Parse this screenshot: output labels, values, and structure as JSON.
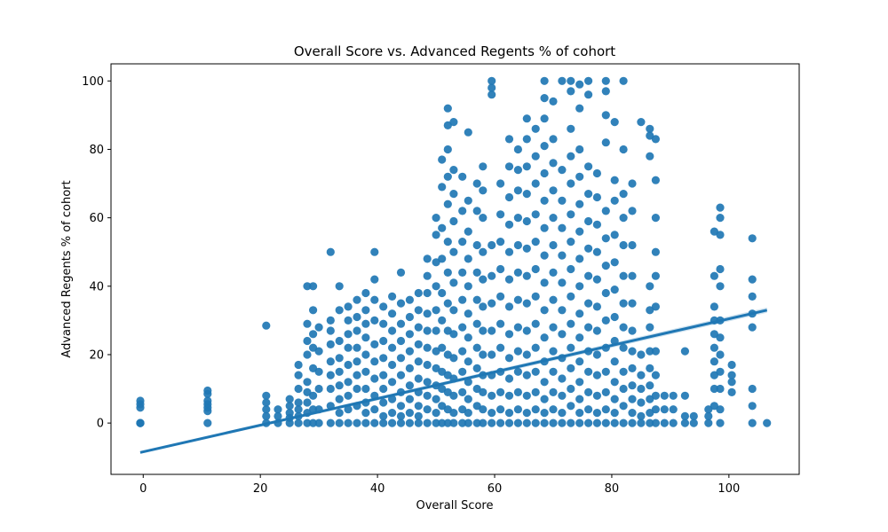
{
  "chart_data": {
    "type": "scatter",
    "title": "Overall Score vs. Advanced Regents % of cohort",
    "xlabel": "Overall Score",
    "ylabel": "Advanced Regents % of cohort",
    "xlim": [
      -5.5,
      112
    ],
    "ylim": [
      -15,
      105
    ],
    "xticks": [
      "0",
      "20",
      "40",
      "60",
      "80",
      "100"
    ],
    "yticks": [
      "0",
      "20",
      "40",
      "60",
      "80",
      "100"
    ],
    "grid": false,
    "colors": {
      "points": "#1f77b4",
      "fit": "#1f77b4"
    },
    "regression": {
      "x": [
        -0.5,
        106.5
      ],
      "y": [
        -8.6,
        33.0
      ]
    },
    "point_groups": [
      {
        "x": -0.5,
        "y": [
          0,
          0,
          0,
          4.5,
          5.5,
          6.5
        ]
      },
      {
        "x": 11,
        "y": [
          0,
          3.5,
          4.5,
          5.5,
          6.5,
          8.5,
          9.5
        ]
      },
      {
        "x": 21,
        "y": [
          0,
          2,
          4,
          6,
          8,
          28.5
        ]
      },
      {
        "x": 23,
        "y": [
          0,
          2,
          4
        ]
      },
      {
        "x": 25,
        "y": [
          0,
          1.5,
          3,
          5,
          7
        ]
      },
      {
        "x": 26.5,
        "y": [
          0,
          2,
          4,
          6,
          10,
          14,
          17
        ]
      },
      {
        "x": 28,
        "y": [
          0,
          3,
          6,
          9,
          12,
          20,
          24,
          29,
          40
        ]
      },
      {
        "x": 29,
        "y": [
          0,
          4,
          8,
          16,
          22,
          26,
          33,
          40
        ]
      },
      {
        "x": 30,
        "y": [
          0,
          4,
          10,
          15,
          21,
          28
        ]
      },
      {
        "x": 32,
        "y": [
          0,
          5,
          10,
          14,
          18,
          23,
          27,
          30,
          50
        ]
      },
      {
        "x": 33.5,
        "y": [
          0,
          3,
          7,
          11,
          15,
          19,
          24,
          33,
          40
        ]
      },
      {
        "x": 35,
        "y": [
          0,
          4,
          8,
          12,
          17,
          22,
          26,
          30,
          34
        ]
      },
      {
        "x": 36.5,
        "y": [
          0,
          5,
          10,
          14,
          18,
          22,
          27,
          31,
          36
        ]
      },
      {
        "x": 38,
        "y": [
          0,
          3,
          6,
          10,
          15,
          20,
          25,
          29,
          33,
          38
        ]
      },
      {
        "x": 39.5,
        "y": [
          0,
          4,
          8,
          13,
          18,
          23,
          30,
          36,
          42,
          50
        ]
      },
      {
        "x": 41,
        "y": [
          0,
          2,
          6,
          10,
          14,
          19,
          24,
          29,
          34
        ]
      },
      {
        "x": 42.5,
        "y": [
          0,
          3,
          7,
          12,
          17,
          22,
          27,
          32,
          37
        ]
      },
      {
        "x": 44,
        "y": [
          0,
          2,
          5,
          9,
          14,
          19,
          24,
          29,
          35,
          44
        ]
      },
      {
        "x": 45.5,
        "y": [
          0,
          3,
          7,
          11,
          16,
          21,
          26,
          31,
          36
        ]
      },
      {
        "x": 47,
        "y": [
          0,
          2,
          5,
          9,
          13,
          18,
          23,
          28,
          33,
          38
        ]
      },
      {
        "x": 48.5,
        "y": [
          0,
          4,
          8,
          12,
          17,
          22,
          27,
          32,
          38,
          43,
          48
        ]
      },
      {
        "x": 50,
        "y": [
          0,
          3,
          7,
          11,
          16,
          21,
          27,
          33,
          40,
          47,
          55,
          60
        ]
      },
      {
        "x": 51,
        "y": [
          0,
          5,
          10,
          15,
          22,
          30,
          38,
          48,
          57,
          69,
          77
        ]
      },
      {
        "x": 52,
        "y": [
          0,
          4,
          9,
          14,
          20,
          27,
          35,
          44,
          53,
          64,
          72,
          80,
          87,
          92
        ]
      },
      {
        "x": 53,
        "y": [
          0,
          3,
          8,
          13,
          19,
          26,
          33,
          41,
          50,
          59,
          67,
          74,
          88
        ]
      },
      {
        "x": 54.5,
        "y": [
          0,
          4,
          9,
          15,
          21,
          28,
          36,
          44,
          53,
          62,
          72
        ]
      },
      {
        "x": 55.5,
        "y": [
          0,
          3,
          7,
          12,
          18,
          25,
          32,
          40,
          48,
          56,
          65,
          85
        ]
      },
      {
        "x": 57,
        "y": [
          0,
          5,
          10,
          16,
          22,
          29,
          36,
          44,
          52,
          62,
          70
        ]
      },
      {
        "x": 58,
        "y": [
          0,
          4,
          9,
          14,
          20,
          27,
          34,
          42,
          50,
          60,
          68,
          75
        ]
      },
      {
        "x": 59.5,
        "y": [
          0,
          3,
          8,
          14,
          20,
          27,
          35,
          43,
          52,
          96,
          98,
          100
        ]
      },
      {
        "x": 61,
        "y": [
          0,
          4,
          9,
          15,
          22,
          29,
          37,
          45,
          53,
          61,
          70
        ]
      },
      {
        "x": 62.5,
        "y": [
          0,
          3,
          8,
          13,
          19,
          26,
          34,
          42,
          50,
          58,
          66,
          75,
          83
        ]
      },
      {
        "x": 64,
        "y": [
          0,
          4,
          9,
          15,
          21,
          28,
          36,
          44,
          52,
          60,
          68,
          74,
          80
        ]
      },
      {
        "x": 65.5,
        "y": [
          0,
          3,
          8,
          14,
          20,
          27,
          35,
          43,
          51,
          59,
          67,
          75,
          83,
          89
        ]
      },
      {
        "x": 67,
        "y": [
          0,
          4,
          9,
          15,
          22,
          29,
          37,
          45,
          53,
          61,
          70,
          78,
          86
        ]
      },
      {
        "x": 68.5,
        "y": [
          0,
          3,
          7,
          12,
          18,
          25,
          33,
          41,
          49,
          57,
          65,
          73,
          81,
          89,
          95,
          100
        ]
      },
      {
        "x": 70,
        "y": [
          0,
          4,
          9,
          15,
          21,
          28,
          36,
          44,
          52,
          60,
          68,
          76,
          83,
          94
        ]
      },
      {
        "x": 71.5,
        "y": [
          0,
          3,
          8,
          13,
          19,
          26,
          33,
          41,
          49,
          57,
          65,
          74,
          100
        ]
      },
      {
        "x": 73,
        "y": [
          0,
          5,
          10,
          16,
          22,
          29,
          37,
          45,
          53,
          61,
          70,
          78,
          86,
          97,
          100
        ]
      },
      {
        "x": 74.5,
        "y": [
          0,
          3,
          7,
          12,
          18,
          25,
          32,
          40,
          48,
          56,
          64,
          72,
          80,
          92,
          99
        ]
      },
      {
        "x": 76,
        "y": [
          0,
          4,
          9,
          15,
          21,
          28,
          35,
          43,
          51,
          59,
          67,
          75,
          96,
          100
        ]
      },
      {
        "x": 77.5,
        "y": [
          0,
          3,
          8,
          14,
          20,
          27,
          34,
          42,
          50,
          58,
          66,
          73
        ]
      },
      {
        "x": 79,
        "y": [
          0,
          4,
          9,
          15,
          22,
          30,
          38,
          46,
          54,
          62,
          82,
          90,
          97,
          100
        ]
      },
      {
        "x": 80.5,
        "y": [
          0,
          3,
          7,
          12,
          18,
          24,
          31,
          39,
          47,
          55,
          65,
          71,
          88
        ]
      },
      {
        "x": 82,
        "y": [
          0,
          5,
          10,
          15,
          22,
          28,
          35,
          43,
          52,
          60,
          67,
          80,
          100
        ]
      },
      {
        "x": 83.5,
        "y": [
          0,
          3,
          7,
          11,
          16,
          21,
          27,
          35,
          43,
          52,
          62,
          70
        ]
      },
      {
        "x": 85,
        "y": [
          0,
          2,
          6,
          10,
          14,
          20,
          88
        ]
      },
      {
        "x": 86.5,
        "y": [
          0,
          3,
          7,
          11,
          16,
          21,
          28,
          33,
          40,
          78,
          84,
          86
        ]
      },
      {
        "x": 87.5,
        "y": [
          0,
          4,
          8,
          14,
          21,
          34,
          43,
          50,
          60,
          71,
          83
        ]
      },
      {
        "x": 89,
        "y": [
          0,
          4,
          8
        ]
      },
      {
        "x": 90.5,
        "y": [
          0,
          4,
          8
        ]
      },
      {
        "x": 92.5,
        "y": [
          0,
          2,
          8,
          21
        ]
      },
      {
        "x": 94,
        "y": [
          0,
          2
        ]
      },
      {
        "x": 96.5,
        "y": [
          0,
          2,
          4
        ]
      },
      {
        "x": 97.5,
        "y": [
          5,
          10,
          14,
          18,
          22,
          26,
          30,
          34,
          43,
          56
        ]
      },
      {
        "x": 98.5,
        "y": [
          0,
          4,
          10,
          15,
          20,
          25,
          30,
          40,
          45,
          55,
          60,
          63
        ]
      },
      {
        "x": 100.5,
        "y": [
          9,
          12,
          14,
          17
        ]
      },
      {
        "x": 104,
        "y": [
          0,
          5,
          10,
          28,
          32,
          37,
          42,
          54
        ]
      },
      {
        "x": 106.5,
        "y": [
          0
        ]
      }
    ]
  }
}
